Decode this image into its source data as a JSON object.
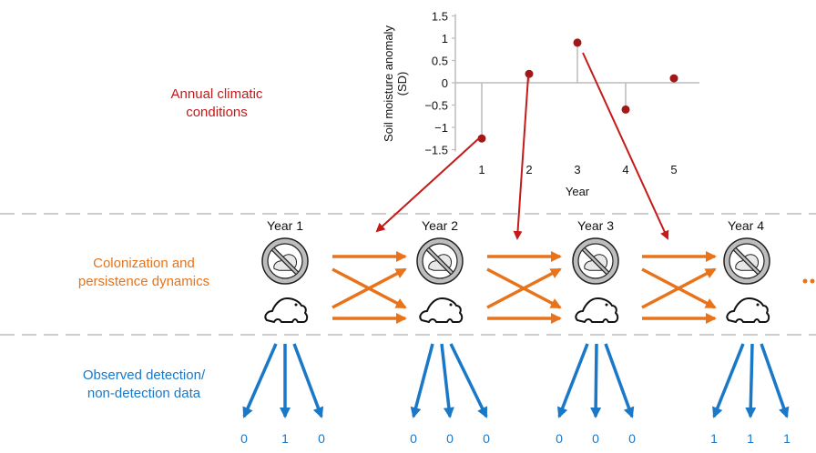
{
  "labels": {
    "climate": "Annual climatic\nconditions",
    "dynamics": "Colonization and\npersistence dynamics",
    "observed": "Observed detection/\nnon-detection data"
  },
  "colors": {
    "climate": "#c41a1a",
    "dynamics": "#e8731a",
    "observed": "#1a78c8",
    "separator": "#cccccc"
  },
  "years": [
    {
      "label": "Year 1",
      "detections": [
        "0",
        "1",
        "0"
      ]
    },
    {
      "label": "Year 2",
      "detections": [
        "0",
        "0",
        "0"
      ]
    },
    {
      "label": "Year 3",
      "detections": [
        "0",
        "0",
        "0"
      ]
    },
    {
      "label": "Year 4",
      "detections": [
        "1",
        "1",
        "1"
      ]
    }
  ],
  "icons": [
    "frog-crossed-out-icon",
    "frog-icon"
  ],
  "chart_data": {
    "type": "scatter",
    "ylabel": "Soil moisture anomaly\n(SD)",
    "xlabel": "Year",
    "categories": [
      "1",
      "2",
      "3",
      "4",
      "5"
    ],
    "values": [
      -1.25,
      0.2,
      0.9,
      -0.6,
      0.1
    ],
    "ylim": [
      -1.5,
      1.5
    ],
    "yticks": [
      "1.5",
      "1",
      "0.5",
      "0",
      "−0.5",
      "−1",
      "−1.5"
    ],
    "ytick_values": [
      1.5,
      1,
      0.5,
      0,
      -0.5,
      -1,
      -1.5
    ],
    "grid": false
  }
}
